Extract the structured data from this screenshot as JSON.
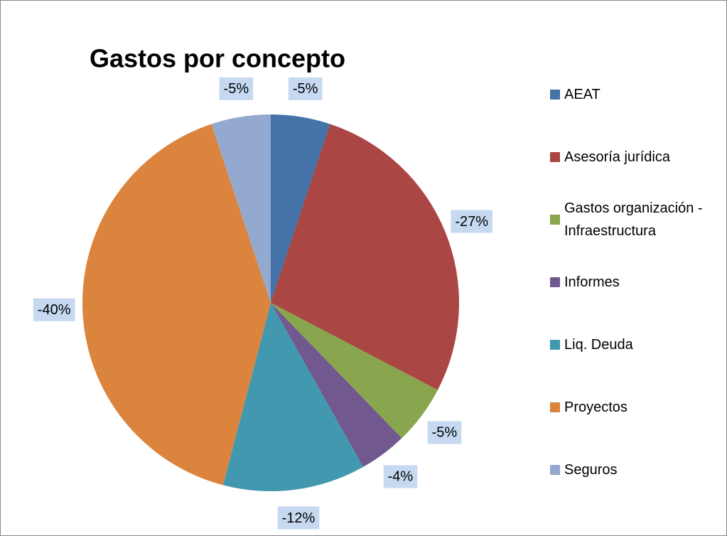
{
  "chart_data": {
    "type": "pie",
    "title": "Gastos por concepto",
    "categories": [
      "AEAT",
      "Asesoría jurídica",
      "Gastos organización - Infraestructura",
      "Informes",
      "Liq. Deuda",
      "Proyectos",
      "Seguros"
    ],
    "values": [
      -5,
      -27,
      -5,
      -4,
      -12,
      -40,
      -5
    ],
    "value_labels": [
      "-5%",
      "-27%",
      "-5%",
      "-4%",
      "-12%",
      "-40%",
      "-5%"
    ],
    "colors": [
      "#4572a7",
      "#aa4643",
      "#89a54e",
      "#71588f",
      "#4198af",
      "#db843d",
      "#93a9cf"
    ],
    "legend": "right"
  }
}
